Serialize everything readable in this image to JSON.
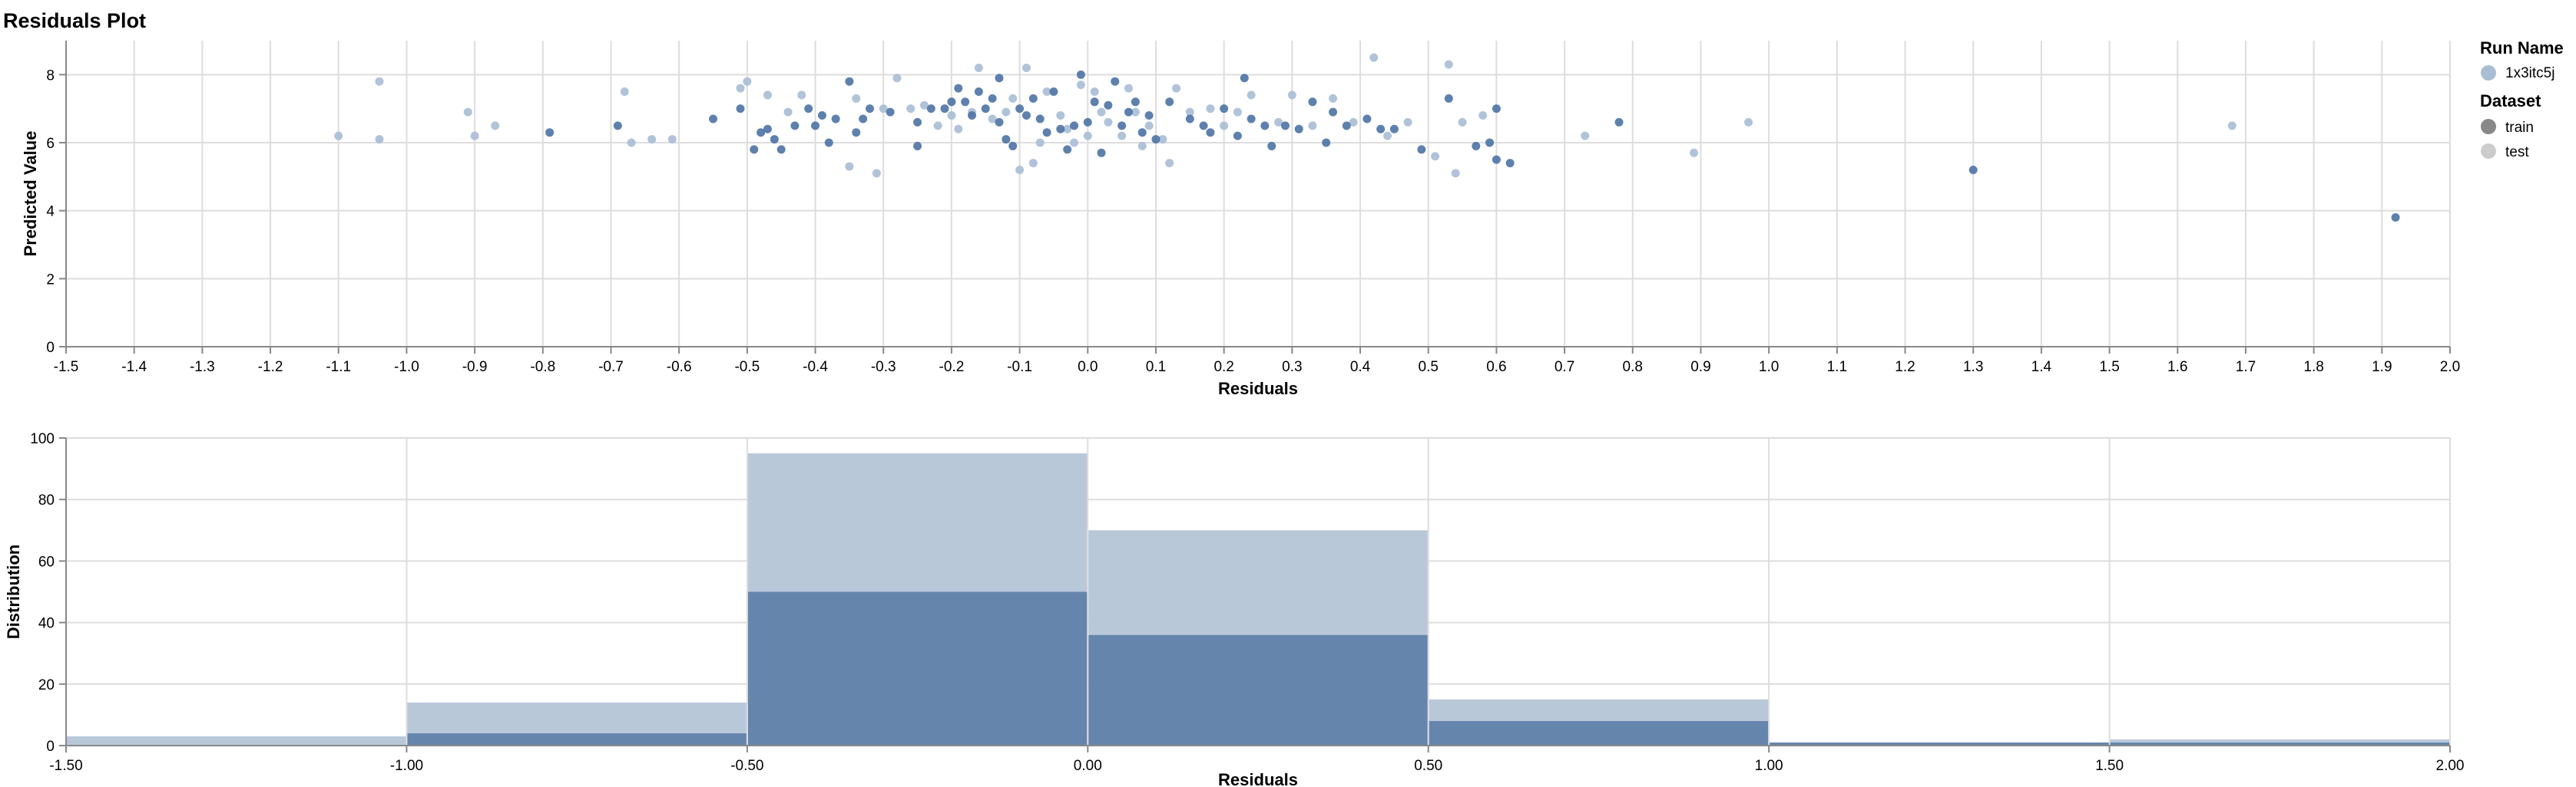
{
  "chart_data": [
    {
      "type": "scatter",
      "title": "Residuals Plot",
      "xlabel": "Residuals",
      "ylabel": "Predicted Value",
      "xlim": [
        -1.5,
        2.0
      ],
      "ylim": [
        0,
        9
      ],
      "x_ticks": [
        "-1.5",
        "-1.4",
        "-1.3",
        "-1.2",
        "-1.1",
        "-1.0",
        "-0.9",
        "-0.8",
        "-0.7",
        "-0.6",
        "-0.5",
        "-0.4",
        "-0.3",
        "-0.2",
        "-0.1",
        "0.0",
        "0.1",
        "0.2",
        "0.3",
        "0.4",
        "0.5",
        "0.6",
        "0.7",
        "0.8",
        "0.9",
        "1.0",
        "1.1",
        "1.2",
        "1.3",
        "1.4",
        "1.5",
        "1.6",
        "1.7",
        "1.8",
        "1.9",
        "2.0"
      ],
      "y_ticks": [
        "0",
        "2",
        "4",
        "6",
        "8"
      ],
      "grid": true,
      "series": [
        {
          "name": "train",
          "color": "#4c72a4",
          "points": [
            [
              -0.79,
              6.3
            ],
            [
              -0.69,
              6.5
            ],
            [
              -0.55,
              6.7
            ],
            [
              -0.51,
              7.0
            ],
            [
              -0.49,
              5.8
            ],
            [
              -0.48,
              6.3
            ],
            [
              -0.47,
              6.4
            ],
            [
              -0.46,
              6.1
            ],
            [
              -0.45,
              5.8
            ],
            [
              -0.43,
              6.5
            ],
            [
              -0.41,
              7.0
            ],
            [
              -0.4,
              6.5
            ],
            [
              -0.39,
              6.8
            ],
            [
              -0.38,
              6.0
            ],
            [
              -0.37,
              6.7
            ],
            [
              -0.35,
              7.8
            ],
            [
              -0.34,
              6.3
            ],
            [
              -0.33,
              6.7
            ],
            [
              -0.32,
              7.0
            ],
            [
              -0.29,
              6.9
            ],
            [
              -0.25,
              6.6
            ],
            [
              -0.25,
              5.9
            ],
            [
              -0.23,
              7.0
            ],
            [
              -0.21,
              7.0
            ],
            [
              -0.2,
              7.2
            ],
            [
              -0.19,
              7.6
            ],
            [
              -0.18,
              7.2
            ],
            [
              -0.17,
              6.8
            ],
            [
              -0.16,
              7.5
            ],
            [
              -0.15,
              7.0
            ],
            [
              -0.14,
              7.3
            ],
            [
              -0.13,
              7.9
            ],
            [
              -0.13,
              6.6
            ],
            [
              -0.12,
              6.1
            ],
            [
              -0.11,
              5.9
            ],
            [
              -0.1,
              7.0
            ],
            [
              -0.09,
              6.8
            ],
            [
              -0.08,
              7.3
            ],
            [
              -0.07,
              6.7
            ],
            [
              -0.06,
              6.3
            ],
            [
              -0.05,
              7.5
            ],
            [
              -0.04,
              6.4
            ],
            [
              -0.03,
              5.8
            ],
            [
              -0.02,
              6.5
            ],
            [
              -0.01,
              8.0
            ],
            [
              0.0,
              6.6
            ],
            [
              0.01,
              7.2
            ],
            [
              0.02,
              5.7
            ],
            [
              0.03,
              7.1
            ],
            [
              0.04,
              7.8
            ],
            [
              0.05,
              6.5
            ],
            [
              0.06,
              6.9
            ],
            [
              0.07,
              7.2
            ],
            [
              0.08,
              6.3
            ],
            [
              0.09,
              6.8
            ],
            [
              0.1,
              6.1
            ],
            [
              0.12,
              7.2
            ],
            [
              0.15,
              6.7
            ],
            [
              0.17,
              6.5
            ],
            [
              0.18,
              6.3
            ],
            [
              0.2,
              7.0
            ],
            [
              0.22,
              6.2
            ],
            [
              0.23,
              7.9
            ],
            [
              0.24,
              6.7
            ],
            [
              0.26,
              6.5
            ],
            [
              0.27,
              5.9
            ],
            [
              0.29,
              6.5
            ],
            [
              0.31,
              6.4
            ],
            [
              0.33,
              7.2
            ],
            [
              0.35,
              6.0
            ],
            [
              0.36,
              6.9
            ],
            [
              0.38,
              6.5
            ],
            [
              0.41,
              6.7
            ],
            [
              0.43,
              6.4
            ],
            [
              0.45,
              6.4
            ],
            [
              0.49,
              5.8
            ],
            [
              0.53,
              7.3
            ],
            [
              0.57,
              5.9
            ],
            [
              0.59,
              6.0
            ],
            [
              0.6,
              7.0
            ],
            [
              0.6,
              5.5
            ],
            [
              0.62,
              5.4
            ],
            [
              0.78,
              6.6
            ],
            [
              1.3,
              5.2
            ],
            [
              1.92,
              3.8
            ]
          ]
        },
        {
          "name": "test",
          "color": "#a9bdd4",
          "points": [
            [
              -1.1,
              6.2
            ],
            [
              -1.04,
              7.8
            ],
            [
              -1.04,
              6.1
            ],
            [
              -0.91,
              6.9
            ],
            [
              -0.9,
              6.2
            ],
            [
              -0.87,
              6.5
            ],
            [
              -0.68,
              7.5
            ],
            [
              -0.67,
              6.0
            ],
            [
              -0.64,
              6.1
            ],
            [
              -0.61,
              6.1
            ],
            [
              -0.5,
              7.8
            ],
            [
              -0.51,
              7.6
            ],
            [
              -0.47,
              7.4
            ],
            [
              -0.42,
              7.4
            ],
            [
              -0.44,
              6.9
            ],
            [
              -0.35,
              5.3
            ],
            [
              -0.34,
              7.3
            ],
            [
              -0.31,
              5.1
            ],
            [
              -0.3,
              7.0
            ],
            [
              -0.28,
              7.9
            ],
            [
              -0.26,
              7.0
            ],
            [
              -0.24,
              7.1
            ],
            [
              -0.22,
              6.5
            ],
            [
              -0.2,
              6.8
            ],
            [
              -0.19,
              6.4
            ],
            [
              -0.17,
              6.9
            ],
            [
              -0.16,
              8.2
            ],
            [
              -0.14,
              6.7
            ],
            [
              -0.12,
              6.9
            ],
            [
              -0.11,
              7.3
            ],
            [
              -0.1,
              5.2
            ],
            [
              -0.09,
              8.2
            ],
            [
              -0.08,
              5.4
            ],
            [
              -0.07,
              6.0
            ],
            [
              -0.06,
              7.5
            ],
            [
              -0.04,
              6.8
            ],
            [
              -0.03,
              6.4
            ],
            [
              -0.02,
              6.0
            ],
            [
              -0.01,
              7.7
            ],
            [
              0.0,
              6.2
            ],
            [
              0.01,
              7.5
            ],
            [
              0.02,
              6.9
            ],
            [
              0.03,
              6.6
            ],
            [
              0.05,
              6.2
            ],
            [
              0.06,
              7.6
            ],
            [
              0.07,
              6.9
            ],
            [
              0.08,
              5.9
            ],
            [
              0.09,
              6.5
            ],
            [
              0.11,
              6.1
            ],
            [
              0.12,
              5.4
            ],
            [
              0.13,
              7.6
            ],
            [
              0.15,
              6.9
            ],
            [
              0.18,
              7.0
            ],
            [
              0.2,
              6.5
            ],
            [
              0.22,
              6.9
            ],
            [
              0.24,
              7.4
            ],
            [
              0.28,
              6.6
            ],
            [
              0.3,
              7.4
            ],
            [
              0.33,
              6.5
            ],
            [
              0.36,
              7.3
            ],
            [
              0.39,
              6.6
            ],
            [
              0.42,
              8.5
            ],
            [
              0.44,
              6.2
            ],
            [
              0.47,
              6.6
            ],
            [
              0.51,
              5.6
            ],
            [
              0.53,
              8.3
            ],
            [
              0.54,
              5.1
            ],
            [
              0.55,
              6.6
            ],
            [
              0.58,
              6.8
            ],
            [
              0.73,
              6.2
            ],
            [
              0.89,
              5.7
            ],
            [
              0.97,
              6.6
            ],
            [
              1.68,
              6.5
            ]
          ]
        }
      ]
    },
    {
      "type": "bar",
      "xlabel": "Residuals",
      "ylabel": "Distribution",
      "xlim": [
        -1.5,
        2.0
      ],
      "ylim": [
        0,
        100
      ],
      "x_ticks": [
        "-1.50",
        "-1.00",
        "-0.50",
        "0.00",
        "0.50",
        "1.00",
        "1.50",
        "2.00"
      ],
      "y_ticks": [
        "0",
        "20",
        "40",
        "60",
        "80",
        "100"
      ],
      "bins": [
        [
          -1.5,
          -1.0
        ],
        [
          -1.0,
          -0.5
        ],
        [
          -0.5,
          0.0
        ],
        [
          0.0,
          0.5
        ],
        [
          0.5,
          1.0
        ],
        [
          1.0,
          1.5
        ],
        [
          1.5,
          2.0
        ]
      ],
      "grid": true,
      "stacked": true,
      "series": [
        {
          "name": "train",
          "color": "#6685ad",
          "values": [
            0,
            4,
            50,
            36,
            8,
            1,
            1
          ]
        },
        {
          "name": "test",
          "color": "#b9c8d9",
          "values": [
            3,
            10,
            45,
            34,
            7,
            0,
            1
          ]
        }
      ]
    }
  ],
  "legend": {
    "placement": "right",
    "run_title": "Run Name",
    "run_name": "1x3itc5j",
    "run_color": "#a9bdd4",
    "dataset_title": "Dataset",
    "datasets": [
      {
        "label": "train",
        "color": "#888888"
      },
      {
        "label": "test",
        "color": "#cccccc"
      }
    ]
  }
}
